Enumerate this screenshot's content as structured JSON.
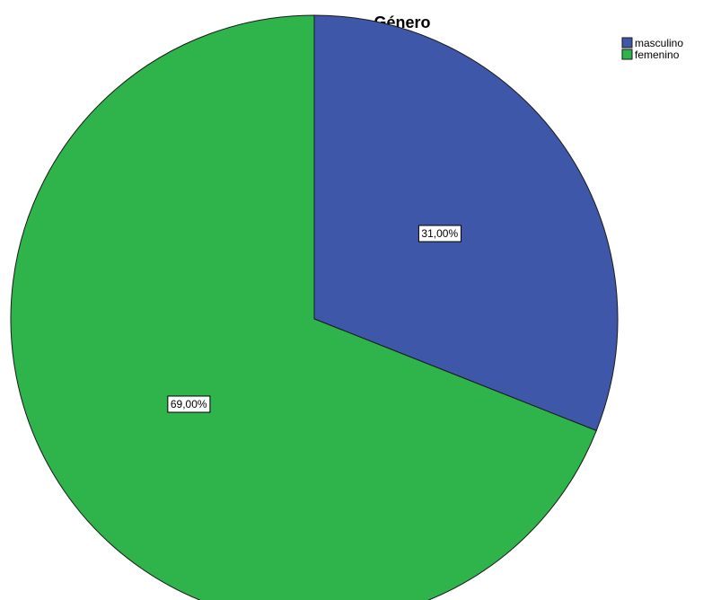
{
  "chart_data": {
    "type": "pie",
    "title": "Género",
    "slices": [
      {
        "label": "masculino",
        "value": 31.0,
        "display": "31,00%",
        "color": "#3f57a8"
      },
      {
        "label": "femenino",
        "value": 69.0,
        "display": "69,00%",
        "color": "#2eb44a"
      }
    ],
    "start_angle_deg": 0,
    "direction": "clockwise",
    "legend": {
      "position": "top-right"
    }
  }
}
